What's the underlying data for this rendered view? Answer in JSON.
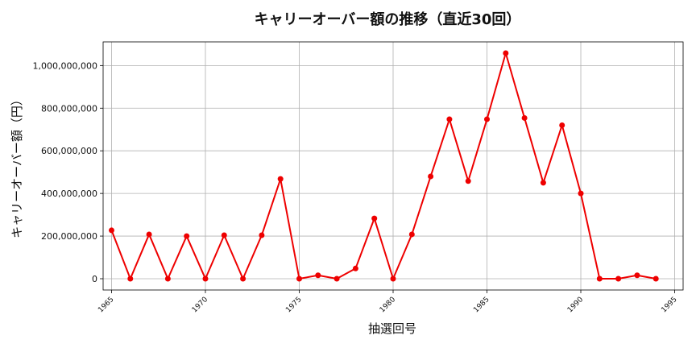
{
  "chart_data": {
    "type": "line",
    "title": "キャリーオーバー額の推移（直近30回）",
    "xlabel": "抽選回号",
    "ylabel": "キャリーオーバー額（円）",
    "x": [
      1965,
      1966,
      1967,
      1968,
      1969,
      1970,
      1971,
      1972,
      1973,
      1974,
      1975,
      1976,
      1977,
      1978,
      1979,
      1980,
      1981,
      1982,
      1983,
      1984,
      1985,
      1986,
      1987,
      1988,
      1989,
      1990,
      1991,
      1992,
      1993,
      1994
    ],
    "series": [
      {
        "values": [
          227000000,
          0,
          208000000,
          0,
          200000000,
          0,
          204000000,
          0,
          204000000,
          468000000,
          0,
          16000000,
          0,
          48000000,
          283000000,
          0,
          208000000,
          480000000,
          748000000,
          458000000,
          748000000,
          1058000000,
          754000000,
          450000000,
          720000000,
          400000000,
          0,
          0,
          16000000,
          0
        ],
        "color": "#ee0000"
      }
    ],
    "xlim": [
      1964.55,
      1995.45
    ],
    "ylim": [
      -52900000,
      1110900000
    ],
    "xticks": [
      1965,
      1970,
      1975,
      1980,
      1985,
      1990,
      1995
    ],
    "xtick_labels": [
      "1965",
      "1970",
      "1975",
      "1980",
      "1985",
      "1990",
      "1995"
    ],
    "yticks": [
      0,
      200000000,
      400000000,
      600000000,
      800000000,
      1000000000
    ],
    "ytick_labels": [
      "0",
      "200,000,000",
      "400,000,000",
      "600,000,000",
      "800,000,000",
      "1,000,000,000"
    ],
    "grid": true
  }
}
